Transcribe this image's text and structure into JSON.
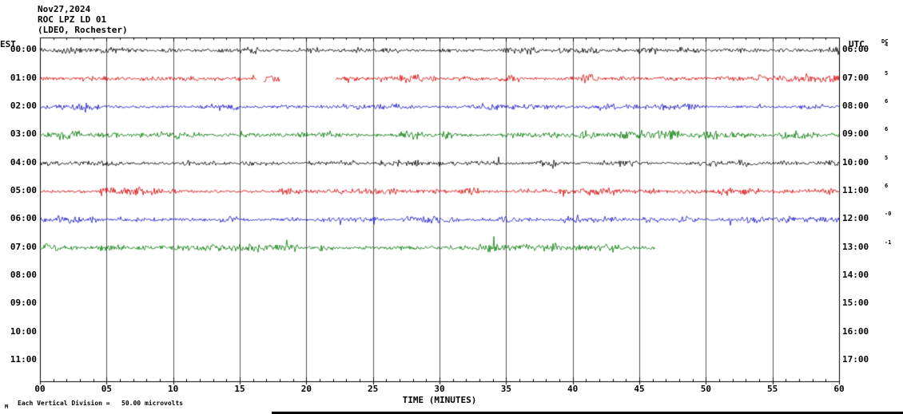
{
  "header": {
    "date": "Nov27,2024",
    "station": "ROC LPZ LD 01",
    "location": "(LDEO, Rochester)"
  },
  "footer": {
    "scale_mark": "M",
    "scale_text": "Each Vertical Division =   50.00 microvolts"
  },
  "chart_data": {
    "type": "line",
    "title": "Helicorder seismogram ROC LPZ LD 01 (LDEO, Rochester) Nov27,2024",
    "left_axis": "EST",
    "right_axis": "UTC",
    "dc_label": "DC",
    "xlabel": "TIME (MINUTES)",
    "x_range_minutes": [
      0,
      60
    ],
    "x_tick_step_minutes": 5,
    "x_ticks": [
      "00",
      "05",
      "10",
      "15",
      "20",
      "25",
      "30",
      "35",
      "40",
      "45",
      "50",
      "55",
      "60"
    ],
    "grid": "vertical lines every 5 minutes, minute ticks on top and bottom borders",
    "amplitude_scale": "50.00 microvolts per vertical division",
    "rows": [
      {
        "est": "00:00",
        "utc": "06:00",
        "color": "#000000",
        "dc": "4",
        "seed": 1,
        "amp": 2.2,
        "segments": [
          [
            0,
            60
          ]
        ]
      },
      {
        "est": "01:00",
        "utc": "07:00",
        "color": "#dd0000",
        "dc": "5",
        "seed": 2,
        "amp": 2.6,
        "segments": [
          [
            0,
            16.3
          ],
          [
            16.8,
            18.0
          ],
          [
            22.2,
            60
          ]
        ]
      },
      {
        "est": "02:00",
        "utc": "08:00",
        "color": "#1111cc",
        "dc": "6",
        "seed": 3,
        "amp": 2.2,
        "segments": [
          [
            0,
            60
          ]
        ]
      },
      {
        "est": "03:00",
        "utc": "09:00",
        "color": "#007700",
        "dc": "6",
        "seed": 4,
        "amp": 2.8,
        "segments": [
          [
            0,
            60
          ]
        ]
      },
      {
        "est": "04:00",
        "utc": "10:00",
        "color": "#000000",
        "dc": "5",
        "seed": 5,
        "amp": 2.2,
        "segments": [
          [
            0,
            60
          ]
        ]
      },
      {
        "est": "05:00",
        "utc": "11:00",
        "color": "#dd0000",
        "dc": "6",
        "seed": 6,
        "amp": 2.4,
        "segments": [
          [
            0,
            60
          ]
        ]
      },
      {
        "est": "06:00",
        "utc": "12:00",
        "color": "#1111cc",
        "dc": "-0",
        "seed": 7,
        "amp": 2.2,
        "segments": [
          [
            0,
            60
          ]
        ]
      },
      {
        "est": "07:00",
        "utc": "13:00",
        "color": "#007700",
        "dc": "-1",
        "seed": 8,
        "amp": 2.6,
        "segments": [
          [
            0,
            46.2
          ]
        ]
      },
      {
        "est": "08:00",
        "utc": "14:00",
        "color": "#000000",
        "dc": "",
        "seed": 9,
        "amp": 0,
        "segments": []
      },
      {
        "est": "09:00",
        "utc": "15:00",
        "color": "#dd0000",
        "dc": "",
        "seed": 10,
        "amp": 0,
        "segments": []
      },
      {
        "est": "10:00",
        "utc": "16:00",
        "color": "#1111cc",
        "dc": "",
        "seed": 11,
        "amp": 0,
        "segments": []
      },
      {
        "est": "11:00",
        "utc": "17:00",
        "color": "#007700",
        "dc": "",
        "seed": 12,
        "amp": 0,
        "segments": []
      }
    ]
  }
}
